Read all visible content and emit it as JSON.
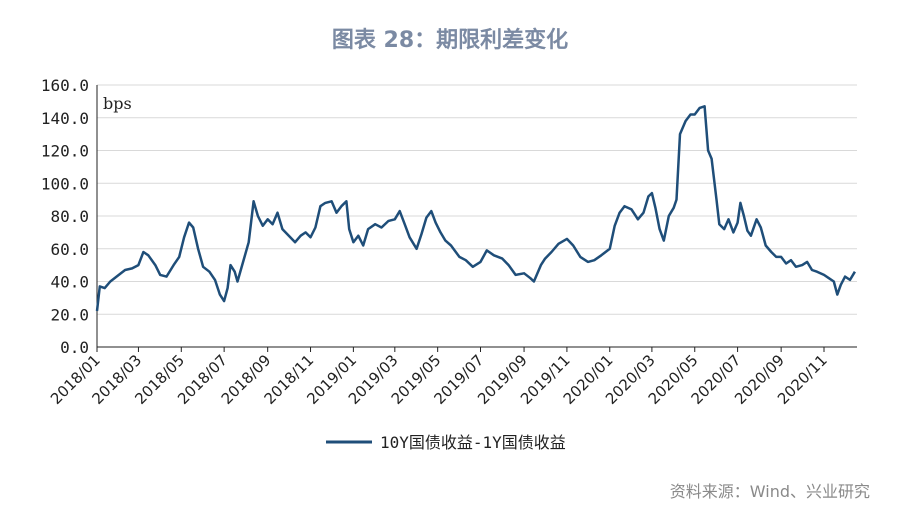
{
  "title": "图表 28：期限利差变化",
  "source": "资料来源：Wind、兴业研究",
  "colors": {
    "line": "#1f4e79",
    "grid": "#d9d9d9",
    "title": "#7b8aa3"
  },
  "chart_data": {
    "type": "line",
    "title": "图表 28：期限利差变化",
    "unit_label": "bps",
    "ylim": [
      0,
      160
    ],
    "yticks": [
      "0.0",
      "20.0",
      "40.0",
      "60.0",
      "80.0",
      "100.0",
      "120.0",
      "140.0",
      "160.0"
    ],
    "xlim": [
      "2018/01",
      "2020/12"
    ],
    "xticks": [
      "2018/01",
      "2018/03",
      "2018/05",
      "2018/07",
      "2018/09",
      "2018/11",
      "2019/01",
      "2019/03",
      "2019/05",
      "2019/07",
      "2019/09",
      "2019/11",
      "2020/01",
      "2020/03",
      "2020/05",
      "2020/07",
      "2020/09",
      "2020/11"
    ],
    "grid": true,
    "legend_position": "bottom",
    "series": [
      {
        "name": "10Y国债收益-1Y国债收益",
        "color": "#1f4e79",
        "points": [
          [
            "2018-01-01",
            22
          ],
          [
            "2018-01-05",
            37
          ],
          [
            "2018-01-12",
            36
          ],
          [
            "2018-01-20",
            40
          ],
          [
            "2018-02-01",
            44
          ],
          [
            "2018-02-10",
            47
          ],
          [
            "2018-02-20",
            48
          ],
          [
            "2018-03-01",
            50
          ],
          [
            "2018-03-08",
            58
          ],
          [
            "2018-03-15",
            56
          ],
          [
            "2018-03-25",
            50
          ],
          [
            "2018-04-01",
            44
          ],
          [
            "2018-04-10",
            43
          ],
          [
            "2018-04-20",
            50
          ],
          [
            "2018-04-28",
            55
          ],
          [
            "2018-05-05",
            67
          ],
          [
            "2018-05-12",
            76
          ],
          [
            "2018-05-18",
            73
          ],
          [
            "2018-05-25",
            60
          ],
          [
            "2018-06-01",
            49
          ],
          [
            "2018-06-10",
            46
          ],
          [
            "2018-06-18",
            41
          ],
          [
            "2018-06-25",
            32
          ],
          [
            "2018-07-01",
            28
          ],
          [
            "2018-07-06",
            36
          ],
          [
            "2018-07-10",
            50
          ],
          [
            "2018-07-16",
            46
          ],
          [
            "2018-07-20",
            40
          ],
          [
            "2018-07-28",
            52
          ],
          [
            "2018-08-05",
            64
          ],
          [
            "2018-08-12",
            89
          ],
          [
            "2018-08-18",
            80
          ],
          [
            "2018-08-25",
            74
          ],
          [
            "2018-09-01",
            78
          ],
          [
            "2018-09-08",
            75
          ],
          [
            "2018-09-15",
            82
          ],
          [
            "2018-09-22",
            72
          ],
          [
            "2018-10-01",
            68
          ],
          [
            "2018-10-10",
            64
          ],
          [
            "2018-10-18",
            68
          ],
          [
            "2018-10-25",
            70
          ],
          [
            "2018-11-01",
            67
          ],
          [
            "2018-11-08",
            73
          ],
          [
            "2018-11-15",
            86
          ],
          [
            "2018-11-22",
            88
          ],
          [
            "2018-12-01",
            89
          ],
          [
            "2018-12-08",
            82
          ],
          [
            "2018-12-15",
            86
          ],
          [
            "2018-12-22",
            89
          ],
          [
            "2018-12-26",
            72
          ],
          [
            "2019-01-01",
            64
          ],
          [
            "2019-01-08",
            68
          ],
          [
            "2019-01-15",
            62
          ],
          [
            "2019-01-22",
            72
          ],
          [
            "2019-02-01",
            75
          ],
          [
            "2019-02-10",
            73
          ],
          [
            "2019-02-20",
            77
          ],
          [
            "2019-03-01",
            78
          ],
          [
            "2019-03-08",
            83
          ],
          [
            "2019-03-15",
            75
          ],
          [
            "2019-03-22",
            67
          ],
          [
            "2019-04-01",
            60
          ],
          [
            "2019-04-08",
            69
          ],
          [
            "2019-04-15",
            79
          ],
          [
            "2019-04-22",
            83
          ],
          [
            "2019-04-28",
            76
          ],
          [
            "2019-05-05",
            70
          ],
          [
            "2019-05-12",
            65
          ],
          [
            "2019-05-20",
            62
          ],
          [
            "2019-06-01",
            55
          ],
          [
            "2019-06-10",
            53
          ],
          [
            "2019-06-20",
            49
          ],
          [
            "2019-07-01",
            52
          ],
          [
            "2019-07-10",
            59
          ],
          [
            "2019-07-20",
            56
          ],
          [
            "2019-08-01",
            54
          ],
          [
            "2019-08-10",
            50
          ],
          [
            "2019-08-20",
            44
          ],
          [
            "2019-09-01",
            45
          ],
          [
            "2019-09-10",
            42
          ],
          [
            "2019-09-15",
            40
          ],
          [
            "2019-09-25",
            50
          ],
          [
            "2019-10-01",
            54
          ],
          [
            "2019-10-10",
            58
          ],
          [
            "2019-10-20",
            63
          ],
          [
            "2019-11-01",
            66
          ],
          [
            "2019-11-10",
            62
          ],
          [
            "2019-11-20",
            55
          ],
          [
            "2019-12-01",
            52
          ],
          [
            "2019-12-10",
            53
          ],
          [
            "2019-12-20",
            56
          ],
          [
            "2020-01-01",
            60
          ],
          [
            "2020-01-08",
            74
          ],
          [
            "2020-01-15",
            82
          ],
          [
            "2020-01-22",
            86
          ],
          [
            "2020-02-01",
            84
          ],
          [
            "2020-02-10",
            78
          ],
          [
            "2020-02-18",
            82
          ],
          [
            "2020-02-25",
            92
          ],
          [
            "2020-03-01",
            94
          ],
          [
            "2020-03-06",
            85
          ],
          [
            "2020-03-12",
            72
          ],
          [
            "2020-03-18",
            65
          ],
          [
            "2020-03-25",
            80
          ],
          [
            "2020-04-01",
            85
          ],
          [
            "2020-04-05",
            90
          ],
          [
            "2020-04-10",
            130
          ],
          [
            "2020-04-18",
            138
          ],
          [
            "2020-04-25",
            142
          ],
          [
            "2020-05-01",
            142
          ],
          [
            "2020-05-08",
            146
          ],
          [
            "2020-05-15",
            147
          ],
          [
            "2020-05-20",
            120
          ],
          [
            "2020-05-25",
            115
          ],
          [
            "2020-06-01",
            90
          ],
          [
            "2020-06-05",
            75
          ],
          [
            "2020-06-12",
            72
          ],
          [
            "2020-06-18",
            78
          ],
          [
            "2020-06-25",
            70
          ],
          [
            "2020-07-01",
            76
          ],
          [
            "2020-07-05",
            88
          ],
          [
            "2020-07-10",
            80
          ],
          [
            "2020-07-15",
            71
          ],
          [
            "2020-07-20",
            68
          ],
          [
            "2020-07-28",
            78
          ],
          [
            "2020-08-03",
            73
          ],
          [
            "2020-08-10",
            62
          ],
          [
            "2020-08-18",
            58
          ],
          [
            "2020-08-25",
            55
          ],
          [
            "2020-09-01",
            55
          ],
          [
            "2020-09-08",
            51
          ],
          [
            "2020-09-15",
            53
          ],
          [
            "2020-09-22",
            49
          ],
          [
            "2020-10-01",
            50
          ],
          [
            "2020-10-08",
            52
          ],
          [
            "2020-10-15",
            47
          ],
          [
            "2020-10-22",
            46
          ],
          [
            "2020-11-01",
            44
          ],
          [
            "2020-11-08",
            42
          ],
          [
            "2020-11-15",
            40
          ],
          [
            "2020-11-20",
            32
          ],
          [
            "2020-11-25",
            38
          ],
          [
            "2020-12-01",
            43
          ],
          [
            "2020-12-08",
            41
          ],
          [
            "2020-12-15",
            46
          ]
        ]
      }
    ]
  }
}
